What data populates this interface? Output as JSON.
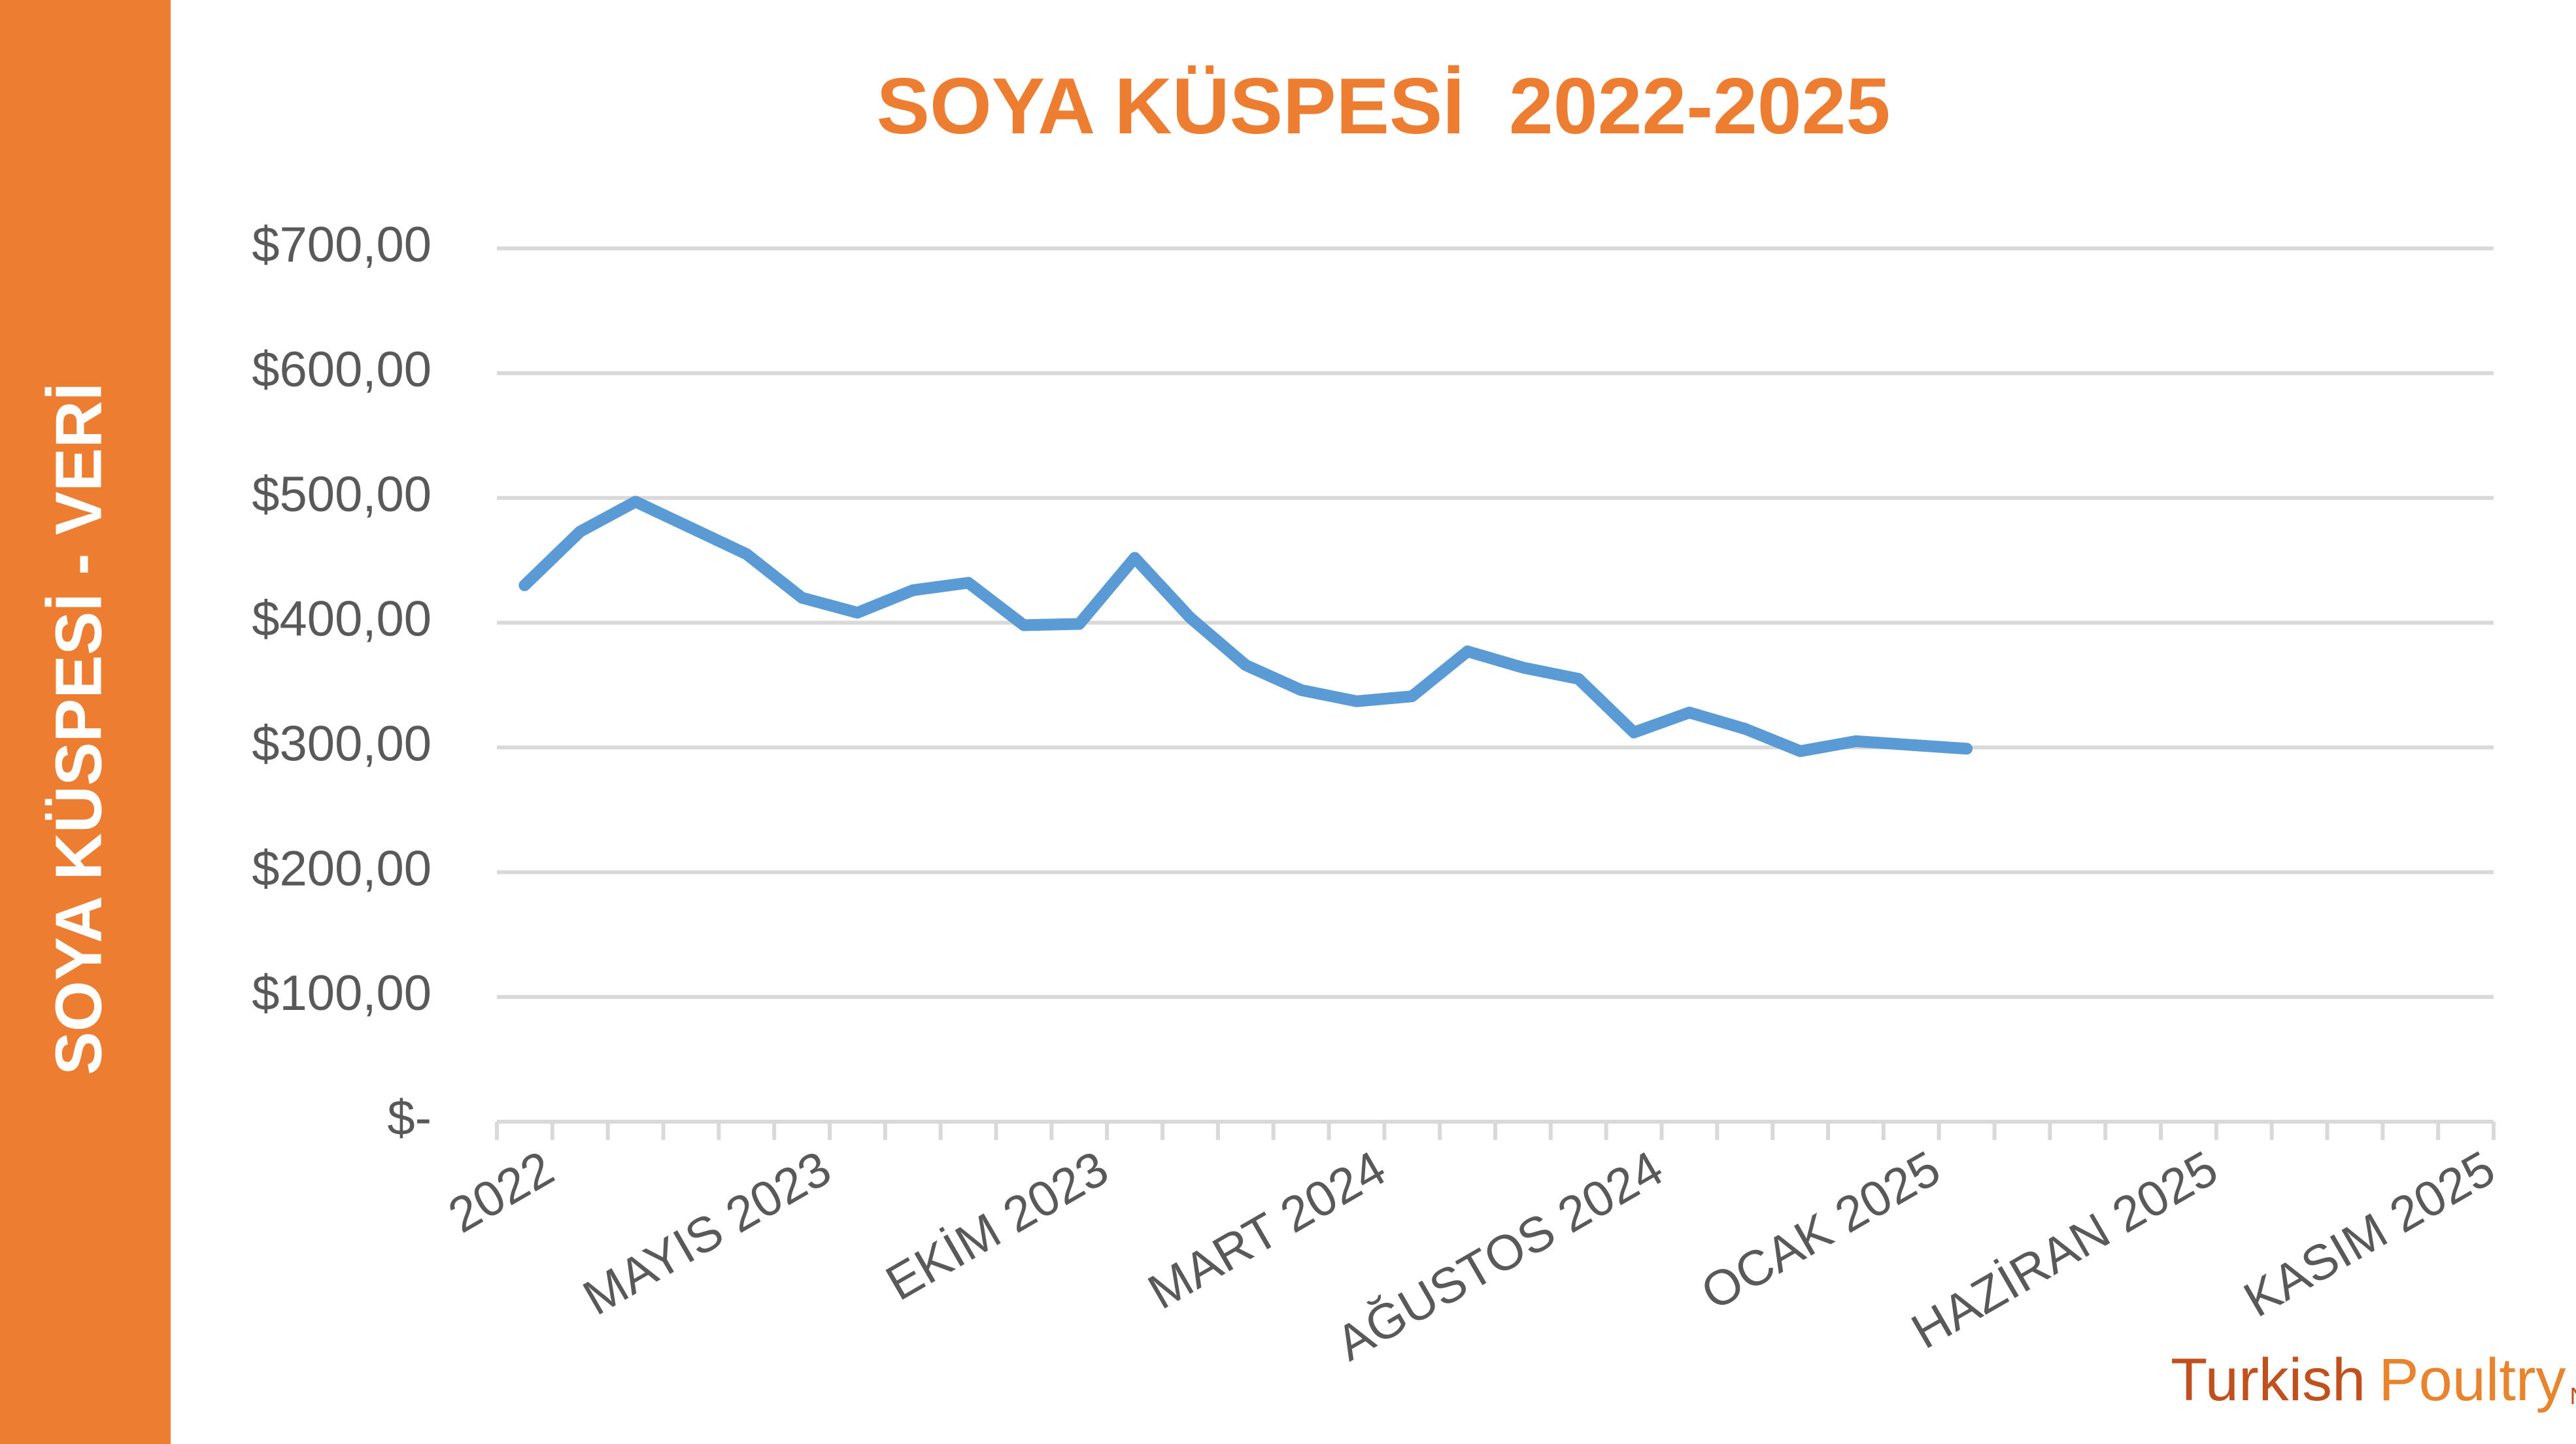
{
  "banner": "SOYA KÜSPESİ - VERİ",
  "logo": {
    "first": "Turkish",
    "second": "Poultry",
    "suffix": "Net"
  },
  "chart_data": {
    "type": "line",
    "title": "SOYA KÜSPESİ  2022-2025",
    "categories": [
      "2022",
      null,
      null,
      null,
      null,
      "MAYIS 2023",
      null,
      null,
      null,
      null,
      "EKİM 2023",
      null,
      null,
      null,
      null,
      "MART 2024",
      null,
      null,
      null,
      null,
      "AĞUSTOS 2024",
      null,
      null,
      null,
      null,
      "OCAK 2025",
      null,
      null,
      null,
      null,
      "HAZİRAN 2025",
      null,
      null,
      null,
      null,
      "KASIM 2025"
    ],
    "series": [
      {
        "color": "#5B9BD5",
        "values": [
          430,
          473,
          497,
          476,
          455,
          420,
          408,
          426,
          432,
          398,
          399,
          452,
          404,
          366,
          346,
          337,
          341,
          377,
          364,
          355,
          312,
          328,
          315,
          297,
          305,
          302,
          299,
          null,
          null,
          null,
          null,
          null,
          null,
          null,
          null,
          null
        ]
      }
    ],
    "ylim": [
      0,
      700
    ],
    "yticks": [
      {
        "value": 0,
        "label": "$-"
      },
      {
        "value": 100,
        "label": "$100,00"
      },
      {
        "value": 200,
        "label": "$200,00"
      },
      {
        "value": 300,
        "label": "$300,00"
      },
      {
        "value": 400,
        "label": "$400,00"
      },
      {
        "value": 500,
        "label": "$500,00"
      },
      {
        "value": 600,
        "label": "$600,00"
      },
      {
        "value": 700,
        "label": "$700,00"
      }
    ],
    "grid": true
  }
}
